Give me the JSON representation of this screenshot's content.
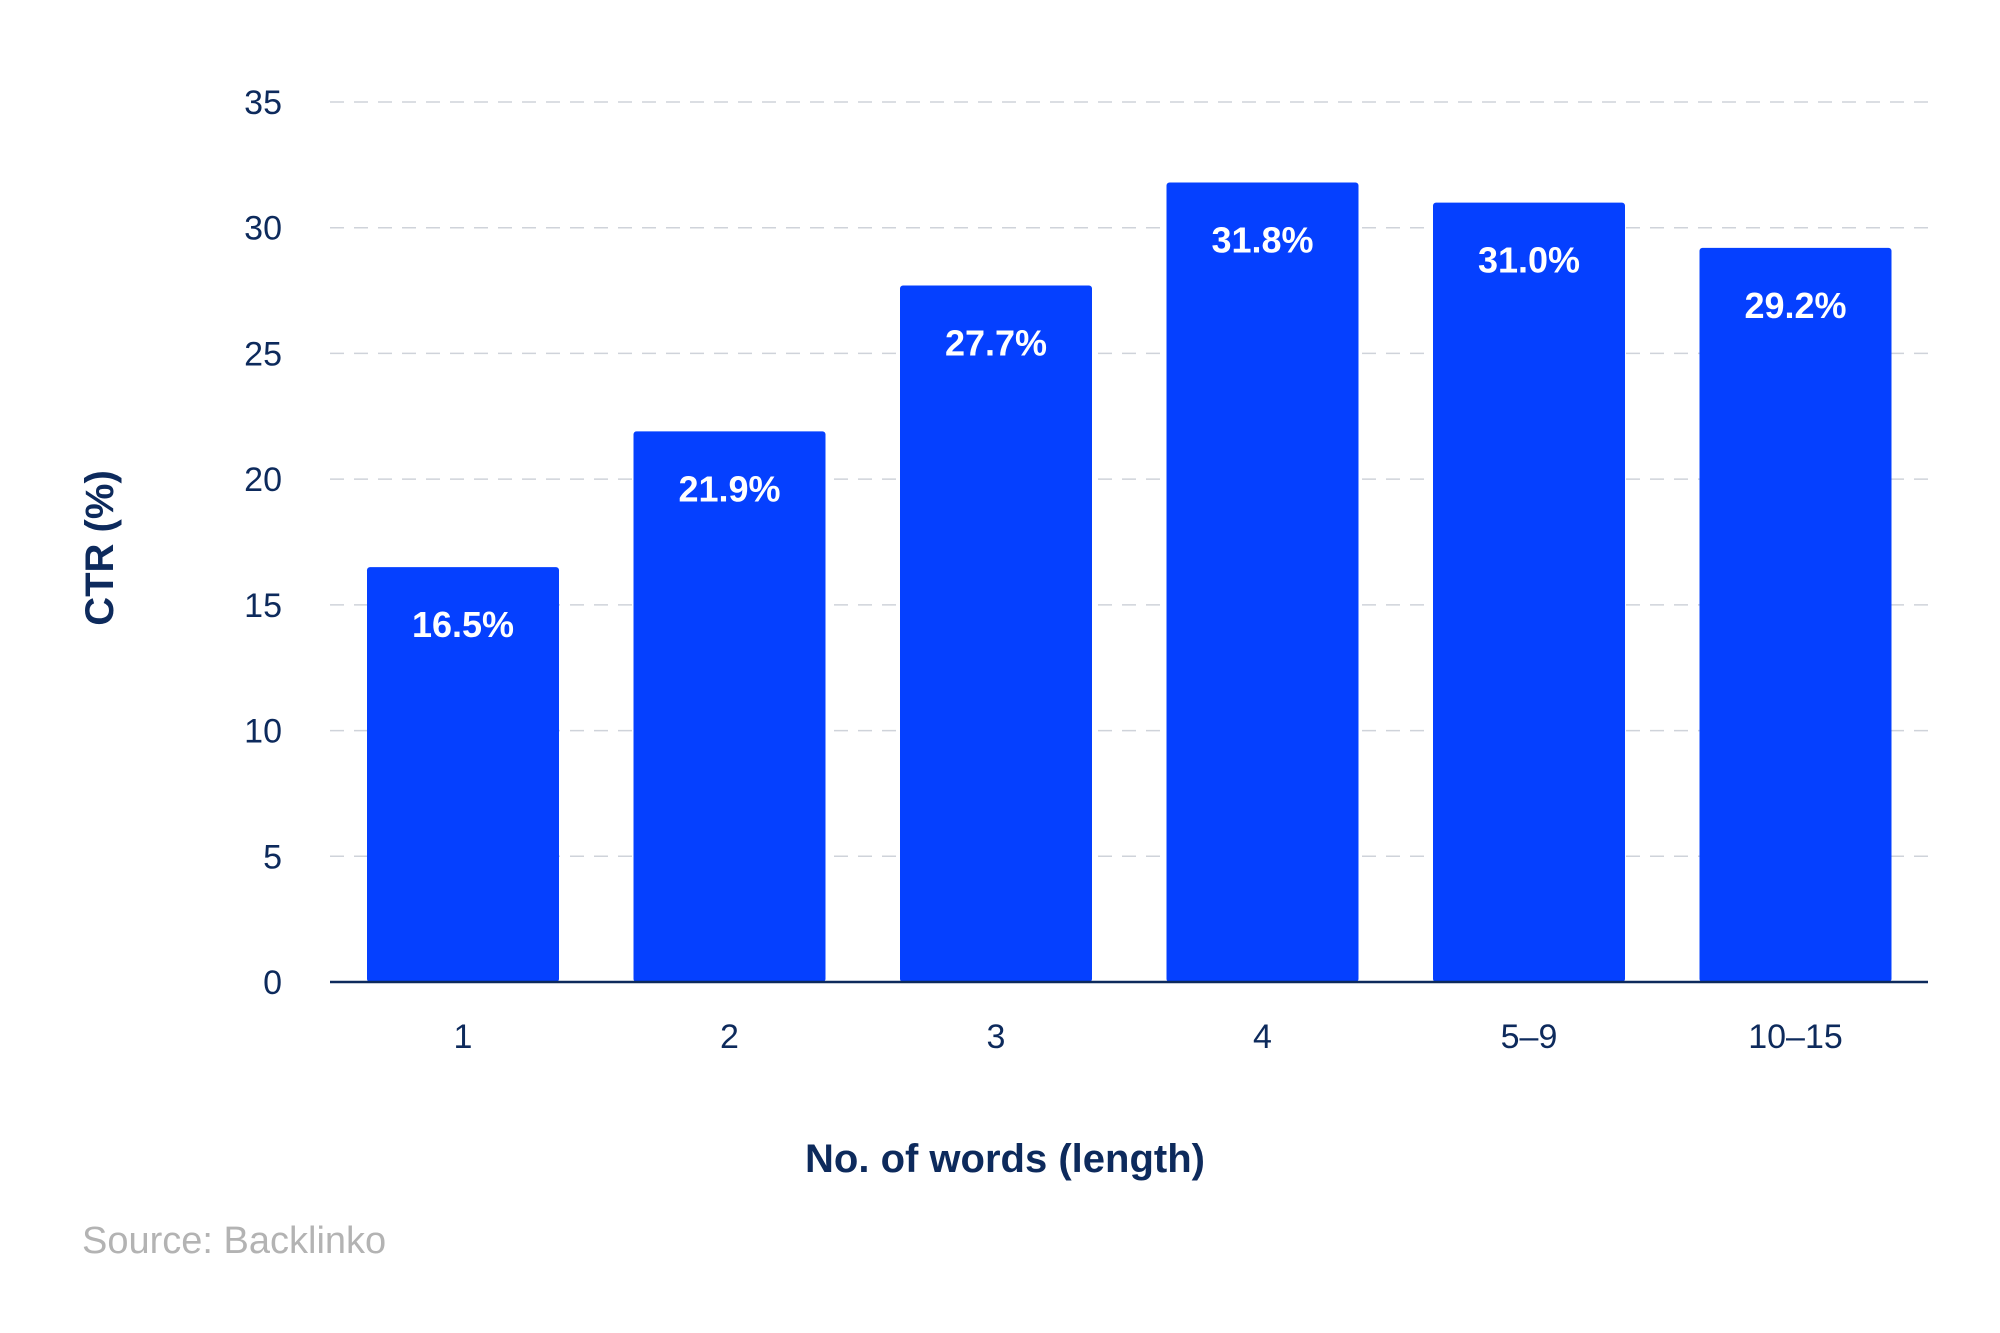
{
  "chart_data": {
    "type": "bar",
    "categories": [
      "1",
      "2",
      "3",
      "4",
      "5–9",
      "10–15"
    ],
    "values": [
      16.5,
      21.9,
      27.7,
      31.8,
      31.0,
      29.2
    ],
    "data_labels": [
      "16.5%",
      "21.9%",
      "27.7%",
      "31.8%",
      "31.0%",
      "29.2%"
    ],
    "xlabel": "No. of words (length)",
    "ylabel": "CTR (%)",
    "ylim": [
      0,
      35
    ],
    "yticks": [
      0,
      5,
      10,
      15,
      20,
      25,
      30,
      35
    ],
    "grid": true,
    "legend": "none",
    "bar_color": "#0540ff",
    "text_color": "#0d2a5c",
    "gridline_color": "#cfd3da"
  },
  "source": "Source: Backlinko"
}
